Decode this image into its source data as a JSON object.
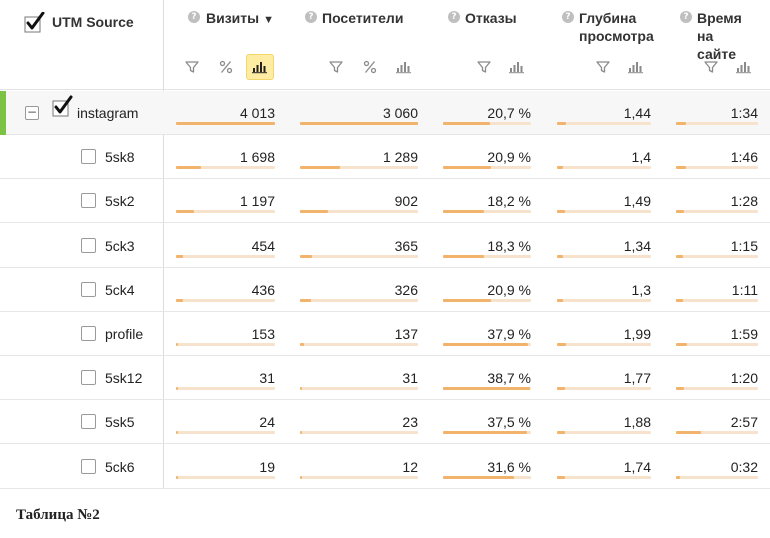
{
  "colors": {
    "accent_green": "#7cc245",
    "bar_fill": "#f2b46c",
    "bar_track": "#f7e3cc",
    "active_ctl": "#ffeca3"
  },
  "header": {
    "utm_title": "UTM Source",
    "cols": [
      {
        "title_lines": [
          "Визиты"
        ],
        "sort_icon": "▼",
        "controls": [
          "filter-icon",
          "percent-icon",
          "bar-chart-icon"
        ],
        "active_control": "bar-chart-icon"
      },
      {
        "title_lines": [
          "Посетители"
        ],
        "controls": [
          "filter-icon",
          "percent-icon",
          "bar-chart-icon"
        ]
      },
      {
        "title_lines": [
          "Отказы"
        ],
        "controls": [
          "filter-icon",
          "bar-chart-icon"
        ]
      },
      {
        "title_lines": [
          "Глубина",
          "просмотра"
        ],
        "controls": [
          "filter-icon",
          "bar-chart-icon"
        ]
      },
      {
        "title_lines": [
          "Время",
          "на сайте"
        ],
        "controls": [
          "filter-icon",
          "bar-chart-icon"
        ]
      }
    ]
  },
  "rows": [
    {
      "name": "instagram",
      "level": 0,
      "expanded": true,
      "checked": true,
      "values": [
        "4 013",
        "3 060",
        "20,7 %",
        "1,44",
        "1:34"
      ],
      "fractions": [
        1.0,
        1.0,
        0.53,
        0.1,
        0.12
      ]
    },
    {
      "name": "5sk8",
      "level": 1,
      "checked": false,
      "values": [
        "1 698",
        "1 289",
        "20,9 %",
        "1,4",
        "1:46"
      ],
      "fractions": [
        0.25,
        0.34,
        0.54,
        0.06,
        0.12
      ]
    },
    {
      "name": "5sk2",
      "level": 1,
      "checked": false,
      "values": [
        "1 197",
        "902",
        "18,2 %",
        "1,49",
        "1:28"
      ],
      "fractions": [
        0.18,
        0.24,
        0.47,
        0.08,
        0.1
      ]
    },
    {
      "name": "5ck3",
      "level": 1,
      "checked": false,
      "values": [
        "454",
        "365",
        "18,3 %",
        "1,34",
        "1:15"
      ],
      "fractions": [
        0.07,
        0.1,
        0.47,
        0.06,
        0.09
      ]
    },
    {
      "name": "5ck4",
      "level": 1,
      "checked": false,
      "values": [
        "436",
        "326",
        "20,9 %",
        "1,3",
        "1:11"
      ],
      "fractions": [
        0.07,
        0.09,
        0.54,
        0.06,
        0.08
      ]
    },
    {
      "name": "profile",
      "level": 1,
      "checked": false,
      "values": [
        "153",
        "137",
        "37,9 %",
        "1,99",
        "1:59"
      ],
      "fractions": [
        0.025,
        0.035,
        0.97,
        0.1,
        0.14
      ]
    },
    {
      "name": "5sk12",
      "level": 1,
      "checked": false,
      "values": [
        "31",
        "31",
        "38,7 %",
        "1,77",
        "1:20"
      ],
      "fractions": [
        0.01,
        0.01,
        0.99,
        0.08,
        0.1
      ]
    },
    {
      "name": "5sk5",
      "level": 1,
      "checked": false,
      "values": [
        "24",
        "23",
        "37,5 %",
        "1,88",
        "2:57"
      ],
      "fractions": [
        0.01,
        0.01,
        0.96,
        0.09,
        0.3
      ]
    },
    {
      "name": "5ck6",
      "level": 1,
      "checked": false,
      "values": [
        "19",
        "12",
        "31,6 %",
        "1,74",
        "0:32"
      ],
      "fractions": [
        0.01,
        0.01,
        0.81,
        0.08,
        0.05
      ]
    }
  ],
  "caption": "Таблица №2"
}
